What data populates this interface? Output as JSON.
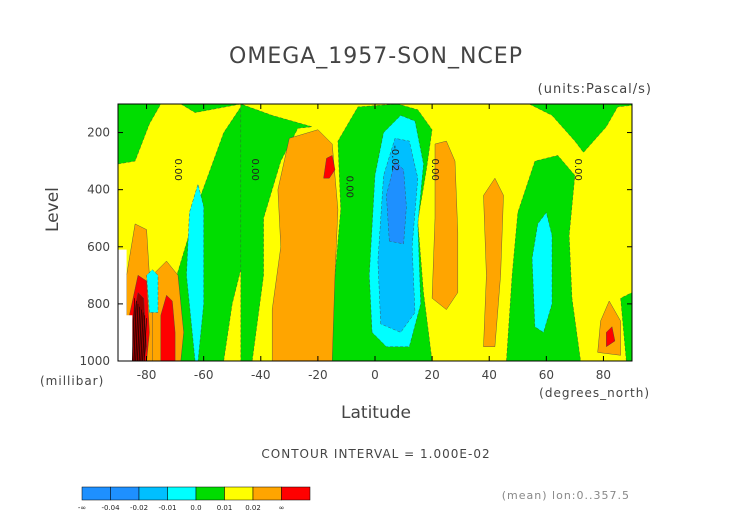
{
  "title": "OMEGA_1957-SON_NCEP",
  "units_label": "(units:Pascal/s)",
  "contour_interval": "CONTOUR INTERVAL = 1.000E-02",
  "footer_note": "(mean) lon:0..357.5",
  "chart_data": {
    "type": "heatmap",
    "title": "OMEGA_1957-SON_NCEP",
    "xlabel": "Latitude",
    "x_units": "(degrees_north)",
    "ylabel": "Level",
    "y_units": "(millibar)",
    "x_ticks": [
      "-80",
      "-60",
      "-40",
      "-20",
      "0",
      "20",
      "40",
      "60",
      "80"
    ],
    "y_ticks": [
      "200",
      "400",
      "600",
      "800",
      "1000"
    ],
    "xlim": [
      -90,
      90
    ],
    "ylim": [
      1000,
      100
    ],
    "colors": {
      "blue": "#1e90ff",
      "skyblue": "#00bfff",
      "cyan": "#00ffff",
      "green": "#00dd00",
      "yellow": "#ffff00",
      "orange": "#ffa500",
      "red": "#ff0000",
      "darkred": "#990000"
    },
    "contour_labels": [
      {
        "text": "0.00",
        "lat": -70,
        "lev": 330
      },
      {
        "text": "0.00",
        "lat": -43,
        "lev": 330
      },
      {
        "text": "0.00",
        "lat": -10,
        "lev": 390
      },
      {
        "text": "-0.02",
        "lat": 6,
        "lev": 290
      },
      {
        "text": "0.00",
        "lat": 20,
        "lev": 330
      },
      {
        "text": "0.00",
        "lat": 70,
        "lev": 330
      }
    ],
    "legend": {
      "colors": [
        "#1e90ff",
        "#1e90ff",
        "#00bfff",
        "#00ffff",
        "#00dd00",
        "#ffff00",
        "#ffa500",
        "#ff0000"
      ],
      "labels": [
        "-∞",
        "-0.04",
        "-0.02",
        "-0.01",
        "0.0",
        "0.01",
        "0.02",
        "∞"
      ]
    }
  }
}
